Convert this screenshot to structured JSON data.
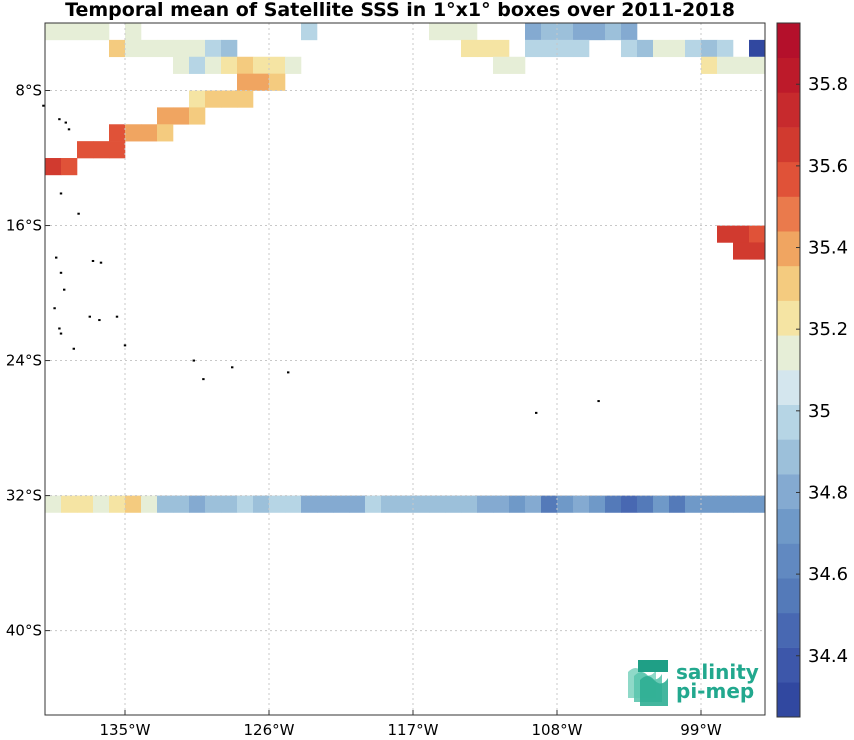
{
  "chart_data": {
    "type": "heatmap",
    "title": "Temporal mean of Satellite SSS in 1°x1° boxes over 2011-2018",
    "lon_range": [
      -140,
      -95
    ],
    "lat_range": [
      -45,
      -4
    ],
    "xticks": [
      -135,
      -126,
      -117,
      -108,
      -99
    ],
    "xtick_labels": [
      "135°W",
      "126°W",
      "117°W",
      "108°W",
      "99°W"
    ],
    "yticks": [
      -8,
      -16,
      -24,
      -32,
      -40
    ],
    "ytick_labels": [
      "8°S",
      "16°S",
      "24°S",
      "32°S",
      "40°S"
    ],
    "grid": true,
    "colorbar": {
      "min": 34.25,
      "max": 35.95,
      "step": 0.1,
      "ticks": [
        34.4,
        34.6,
        34.8,
        35.0,
        35.2,
        35.4,
        35.6,
        35.8
      ],
      "tick_labels": [
        "34.4",
        "34.6",
        "34.8",
        "35",
        "35.2",
        "35.4",
        "35.6",
        "35.8"
      ],
      "colors": [
        "#3148a0",
        "#3d57aa",
        "#4868b2",
        "#547ab9",
        "#6189c1",
        "#6f99c8",
        "#84aad1",
        "#9cc0da",
        "#b6d5e5",
        "#d4e6ee",
        "#e6eed7",
        "#f5e4a3",
        "#f4cb7f",
        "#f0a561",
        "#ea7a4c",
        "#e05238",
        "#d13a2f",
        "#c72a2d",
        "#bd1a2a",
        "#b4102b"
      ]
    },
    "cells": [
      {
        "lat": -5,
        "lon": -140,
        "v": 35.25
      },
      {
        "lat": -5,
        "lon": -139,
        "v": 35.25
      },
      {
        "lat": -5,
        "lon": -138,
        "v": 35.25
      },
      {
        "lat": -5,
        "lon": -137,
        "v": 35.25
      },
      {
        "lat": -5,
        "lon": -135,
        "v": 35.25
      },
      {
        "lat": -5,
        "lon": -124,
        "v": 35.15
      },
      {
        "lat": -5,
        "lon": -116,
        "v": 35.25
      },
      {
        "lat": -5,
        "lon": -115,
        "v": 35.25
      },
      {
        "lat": -5,
        "lon": -114,
        "v": 35.25
      },
      {
        "lat": -5,
        "lon": -110,
        "v": 34.85
      },
      {
        "lat": -5,
        "lon": -109,
        "v": 34.95
      },
      {
        "lat": -5,
        "lon": -108,
        "v": 34.95
      },
      {
        "lat": -5,
        "lon": -107,
        "v": 34.85
      },
      {
        "lat": -5,
        "lon": -106,
        "v": 34.85
      },
      {
        "lat": -5,
        "lon": -105,
        "v": 34.95
      },
      {
        "lat": -5,
        "lon": -104,
        "v": 34.85
      },
      {
        "lat": -6,
        "lon": -136,
        "v": 35.55
      },
      {
        "lat": -6,
        "lon": -135,
        "v": 35.25
      },
      {
        "lat": -6,
        "lon": -134,
        "v": 35.25
      },
      {
        "lat": -6,
        "lon": -133,
        "v": 35.25
      },
      {
        "lat": -6,
        "lon": -132,
        "v": 35.25
      },
      {
        "lat": -6,
        "lon": -131,
        "v": 35.25
      },
      {
        "lat": -6,
        "lon": -130,
        "v": 35.15
      },
      {
        "lat": -6,
        "lon": -129,
        "v": 35.05
      },
      {
        "lat": -6,
        "lon": -114,
        "v": 35.35
      },
      {
        "lat": -6,
        "lon": -113,
        "v": 35.35
      },
      {
        "lat": -6,
        "lon": -112,
        "v": 35.35
      },
      {
        "lat": -6,
        "lon": -110,
        "v": 35.15
      },
      {
        "lat": -6,
        "lon": -109,
        "v": 35.15
      },
      {
        "lat": -6,
        "lon": -108,
        "v": 35.15
      },
      {
        "lat": -6,
        "lon": -107,
        "v": 35.15
      },
      {
        "lat": -6,
        "lon": -104,
        "v": 35.15
      },
      {
        "lat": -6,
        "lon": -103,
        "v": 35.05
      },
      {
        "lat": -6,
        "lon": -102,
        "v": 35.25
      },
      {
        "lat": -6,
        "lon": -101,
        "v": 35.25
      },
      {
        "lat": -6,
        "lon": -100,
        "v": 35.15
      },
      {
        "lat": -6,
        "lon": -99,
        "v": 35.05
      },
      {
        "lat": -6,
        "lon": -98,
        "v": 35.15
      },
      {
        "lat": -6,
        "lon": -96,
        "v": 34.3
      },
      {
        "lat": -7,
        "lon": -132,
        "v": 35.25
      },
      {
        "lat": -7,
        "lon": -131,
        "v": 35.15
      },
      {
        "lat": -7,
        "lon": -130,
        "v": 35.25
      },
      {
        "lat": -7,
        "lon": -129,
        "v": 35.35
      },
      {
        "lat": -7,
        "lon": -128,
        "v": 35.45
      },
      {
        "lat": -7,
        "lon": -127,
        "v": 35.35
      },
      {
        "lat": -7,
        "lon": -126,
        "v": 35.35
      },
      {
        "lat": -7,
        "lon": -125,
        "v": 35.25
      },
      {
        "lat": -7,
        "lon": -112,
        "v": 35.25
      },
      {
        "lat": -7,
        "lon": -111,
        "v": 35.25
      },
      {
        "lat": -7,
        "lon": -99,
        "v": 35.35
      },
      {
        "lat": -7,
        "lon": -98,
        "v": 35.25
      },
      {
        "lat": -7,
        "lon": -97,
        "v": 35.25
      },
      {
        "lat": -7,
        "lon": -96,
        "v": 35.25
      },
      {
        "lat": -8,
        "lon": -128,
        "v": 35.65
      },
      {
        "lat": -8,
        "lon": -127,
        "v": 35.65
      },
      {
        "lat": -8,
        "lon": -126,
        "v": 35.55
      },
      {
        "lat": -9,
        "lon": -131,
        "v": 35.35
      },
      {
        "lat": -9,
        "lon": -130,
        "v": 35.45
      },
      {
        "lat": -9,
        "lon": -129,
        "v": 35.55
      },
      {
        "lat": -9,
        "lon": -128,
        "v": 35.45
      },
      {
        "lat": -10,
        "lon": -133,
        "v": 35.65
      },
      {
        "lat": -10,
        "lon": -132,
        "v": 35.65
      },
      {
        "lat": -10,
        "lon": -131,
        "v": 35.45
      },
      {
        "lat": -11,
        "lon": -136,
        "v": 35.75
      },
      {
        "lat": -11,
        "lon": -135,
        "v": 35.65
      },
      {
        "lat": -11,
        "lon": -134,
        "v": 35.65
      },
      {
        "lat": -11,
        "lon": -133,
        "v": 35.55
      },
      {
        "lat": -12,
        "lon": -138,
        "v": 35.75
      },
      {
        "lat": -12,
        "lon": -137,
        "v": 35.75
      },
      {
        "lat": -12,
        "lon": -136,
        "v": 35.75
      },
      {
        "lat": -13,
        "lon": -140,
        "v": 35.85
      },
      {
        "lat": -13,
        "lon": -139,
        "v": 35.75
      },
      {
        "lat": -17,
        "lon": -98,
        "v": 35.85
      },
      {
        "lat": -17,
        "lon": -97,
        "v": 35.85
      },
      {
        "lat": -17,
        "lon": -96,
        "v": 35.75
      },
      {
        "lat": -18,
        "lon": -97,
        "v": 35.85
      },
      {
        "lat": -18,
        "lon": -96,
        "v": 35.85
      },
      {
        "lat": -33,
        "lon": -140,
        "v": 35.25
      },
      {
        "lat": -33,
        "lon": -139,
        "v": 35.35
      },
      {
        "lat": -33,
        "lon": -138,
        "v": 35.35
      },
      {
        "lat": -33,
        "lon": -137,
        "v": 35.25
      },
      {
        "lat": -33,
        "lon": -136,
        "v": 35.35
      },
      {
        "lat": -33,
        "lon": -135,
        "v": 35.45
      },
      {
        "lat": -33,
        "lon": -134,
        "v": 35.25
      },
      {
        "lat": -33,
        "lon": -133,
        "v": 35.05
      },
      {
        "lat": -33,
        "lon": -132,
        "v": 35.05
      },
      {
        "lat": -33,
        "lon": -131,
        "v": 34.85
      },
      {
        "lat": -33,
        "lon": -130,
        "v": 34.95
      },
      {
        "lat": -33,
        "lon": -129,
        "v": 34.95
      },
      {
        "lat": -33,
        "lon": -128,
        "v": 35.15
      },
      {
        "lat": -33,
        "lon": -127,
        "v": 35.05
      },
      {
        "lat": -33,
        "lon": -126,
        "v": 35.15
      },
      {
        "lat": -33,
        "lon": -125,
        "v": 35.15
      },
      {
        "lat": -33,
        "lon": -124,
        "v": 34.85
      },
      {
        "lat": -33,
        "lon": -123,
        "v": 34.85
      },
      {
        "lat": -33,
        "lon": -122,
        "v": 34.85
      },
      {
        "lat": -33,
        "lon": -121,
        "v": 34.85
      },
      {
        "lat": -33,
        "lon": -120,
        "v": 35.15
      },
      {
        "lat": -33,
        "lon": -119,
        "v": 34.95
      },
      {
        "lat": -33,
        "lon": -118,
        "v": 34.95
      },
      {
        "lat": -33,
        "lon": -117,
        "v": 34.95
      },
      {
        "lat": -33,
        "lon": -116,
        "v": 34.95
      },
      {
        "lat": -33,
        "lon": -115,
        "v": 34.95
      },
      {
        "lat": -33,
        "lon": -114,
        "v": 35.05
      },
      {
        "lat": -33,
        "lon": -113,
        "v": 34.85
      },
      {
        "lat": -33,
        "lon": -112,
        "v": 34.85
      },
      {
        "lat": -33,
        "lon": -111,
        "v": 34.75
      },
      {
        "lat": -33,
        "lon": -110,
        "v": 34.85
      },
      {
        "lat": -33,
        "lon": -109,
        "v": 34.65
      },
      {
        "lat": -33,
        "lon": -108,
        "v": 34.75
      },
      {
        "lat": -33,
        "lon": -107,
        "v": 34.85
      },
      {
        "lat": -33,
        "lon": -106,
        "v": 34.75
      },
      {
        "lat": -33,
        "lon": -105,
        "v": 34.65
      },
      {
        "lat": -33,
        "lon": -104,
        "v": 34.45
      },
      {
        "lat": -33,
        "lon": -103,
        "v": 34.65
      },
      {
        "lat": -33,
        "lon": -102,
        "v": 34.75
      },
      {
        "lat": -33,
        "lon": -101,
        "v": 34.65
      },
      {
        "lat": -33,
        "lon": -100,
        "v": 34.75
      },
      {
        "lat": -33,
        "lon": -99,
        "v": 34.75
      },
      {
        "lat": -33,
        "lon": -98,
        "v": 34.75
      },
      {
        "lat": -33,
        "lon": -97,
        "v": 34.75
      },
      {
        "lat": -33,
        "lon": -96,
        "v": 34.75
      }
    ],
    "islands": [
      {
        "lat": -8.9,
        "lon": -140.1
      },
      {
        "lat": -9.7,
        "lon": -139.1
      },
      {
        "lat": -9.9,
        "lon": -138.7
      },
      {
        "lat": -10.3,
        "lon": -138.5
      },
      {
        "lat": -14.1,
        "lon": -139.0
      },
      {
        "lat": -15.3,
        "lon": -137.9
      },
      {
        "lat": -17.9,
        "lon": -139.3
      },
      {
        "lat": -18.1,
        "lon": -137.0
      },
      {
        "lat": -18.2,
        "lon": -136.5
      },
      {
        "lat": -18.8,
        "lon": -139.0
      },
      {
        "lat": -19.8,
        "lon": -138.8
      },
      {
        "lat": -20.9,
        "lon": -139.4
      },
      {
        "lat": -21.4,
        "lon": -137.2
      },
      {
        "lat": -21.6,
        "lon": -136.6
      },
      {
        "lat": -21.4,
        "lon": -135.5
      },
      {
        "lat": -22.1,
        "lon": -139.1
      },
      {
        "lat": -22.4,
        "lon": -139.0
      },
      {
        "lat": -23.3,
        "lon": -138.2
      },
      {
        "lat": -23.1,
        "lon": -135.0
      },
      {
        "lat": -24.0,
        "lon": -130.7
      },
      {
        "lat": -25.1,
        "lon": -130.1
      },
      {
        "lat": -24.4,
        "lon": -128.3
      },
      {
        "lat": -24.7,
        "lon": -124.8
      },
      {
        "lat": -27.1,
        "lon": -109.3
      },
      {
        "lat": -26.4,
        "lon": -105.4
      }
    ]
  },
  "logo": {
    "line1": "salinity",
    "line2": "pi-mep"
  }
}
